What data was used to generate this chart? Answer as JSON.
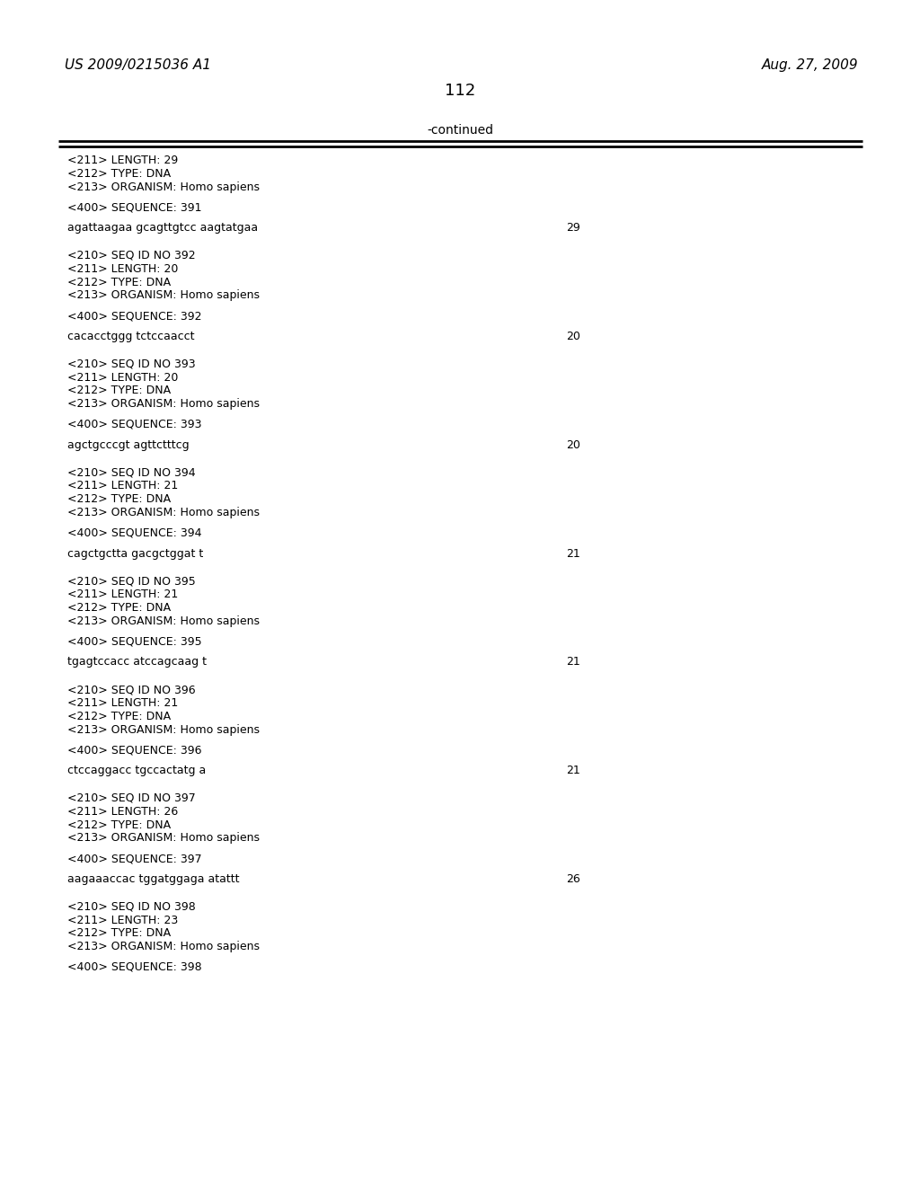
{
  "header_left": "US 2009/0215036 A1",
  "header_right": "Aug. 27, 2009",
  "page_number": "112",
  "continued_label": "-continued",
  "background_color": "#ffffff",
  "text_color": "#000000",
  "content_lines": [
    {
      "text": "<211> LENGTH: 29",
      "type": "meta"
    },
    {
      "text": "<212> TYPE: DNA",
      "type": "meta"
    },
    {
      "text": "<213> ORGANISM: Homo sapiens",
      "type": "meta"
    },
    {
      "text": "",
      "type": "blank"
    },
    {
      "text": "<400> SEQUENCE: 391",
      "type": "meta"
    },
    {
      "text": "",
      "type": "blank"
    },
    {
      "text": "agattaagaa gcagttgtcc aagtatgaa",
      "type": "seq",
      "num": "29"
    },
    {
      "text": "",
      "type": "blank"
    },
    {
      "text": "",
      "type": "blank"
    },
    {
      "text": "<210> SEQ ID NO 392",
      "type": "meta"
    },
    {
      "text": "<211> LENGTH: 20",
      "type": "meta"
    },
    {
      "text": "<212> TYPE: DNA",
      "type": "meta"
    },
    {
      "text": "<213> ORGANISM: Homo sapiens",
      "type": "meta"
    },
    {
      "text": "",
      "type": "blank"
    },
    {
      "text": "<400> SEQUENCE: 392",
      "type": "meta"
    },
    {
      "text": "",
      "type": "blank"
    },
    {
      "text": "cacacctggg tctccaacct",
      "type": "seq",
      "num": "20"
    },
    {
      "text": "",
      "type": "blank"
    },
    {
      "text": "",
      "type": "blank"
    },
    {
      "text": "<210> SEQ ID NO 393",
      "type": "meta"
    },
    {
      "text": "<211> LENGTH: 20",
      "type": "meta"
    },
    {
      "text": "<212> TYPE: DNA",
      "type": "meta"
    },
    {
      "text": "<213> ORGANISM: Homo sapiens",
      "type": "meta"
    },
    {
      "text": "",
      "type": "blank"
    },
    {
      "text": "<400> SEQUENCE: 393",
      "type": "meta"
    },
    {
      "text": "",
      "type": "blank"
    },
    {
      "text": "agctgcccgt agttctttcg",
      "type": "seq",
      "num": "20"
    },
    {
      "text": "",
      "type": "blank"
    },
    {
      "text": "",
      "type": "blank"
    },
    {
      "text": "<210> SEQ ID NO 394",
      "type": "meta"
    },
    {
      "text": "<211> LENGTH: 21",
      "type": "meta"
    },
    {
      "text": "<212> TYPE: DNA",
      "type": "meta"
    },
    {
      "text": "<213> ORGANISM: Homo sapiens",
      "type": "meta"
    },
    {
      "text": "",
      "type": "blank"
    },
    {
      "text": "<400> SEQUENCE: 394",
      "type": "meta"
    },
    {
      "text": "",
      "type": "blank"
    },
    {
      "text": "cagctgctta gacgctggat t",
      "type": "seq",
      "num": "21"
    },
    {
      "text": "",
      "type": "blank"
    },
    {
      "text": "",
      "type": "blank"
    },
    {
      "text": "<210> SEQ ID NO 395",
      "type": "meta"
    },
    {
      "text": "<211> LENGTH: 21",
      "type": "meta"
    },
    {
      "text": "<212> TYPE: DNA",
      "type": "meta"
    },
    {
      "text": "<213> ORGANISM: Homo sapiens",
      "type": "meta"
    },
    {
      "text": "",
      "type": "blank"
    },
    {
      "text": "<400> SEQUENCE: 395",
      "type": "meta"
    },
    {
      "text": "",
      "type": "blank"
    },
    {
      "text": "tgagtccacc atccagcaag t",
      "type": "seq",
      "num": "21"
    },
    {
      "text": "",
      "type": "blank"
    },
    {
      "text": "",
      "type": "blank"
    },
    {
      "text": "<210> SEQ ID NO 396",
      "type": "meta"
    },
    {
      "text": "<211> LENGTH: 21",
      "type": "meta"
    },
    {
      "text": "<212> TYPE: DNA",
      "type": "meta"
    },
    {
      "text": "<213> ORGANISM: Homo sapiens",
      "type": "meta"
    },
    {
      "text": "",
      "type": "blank"
    },
    {
      "text": "<400> SEQUENCE: 396",
      "type": "meta"
    },
    {
      "text": "",
      "type": "blank"
    },
    {
      "text": "ctccaggacc tgccactatg a",
      "type": "seq",
      "num": "21"
    },
    {
      "text": "",
      "type": "blank"
    },
    {
      "text": "",
      "type": "blank"
    },
    {
      "text": "<210> SEQ ID NO 397",
      "type": "meta"
    },
    {
      "text": "<211> LENGTH: 26",
      "type": "meta"
    },
    {
      "text": "<212> TYPE: DNA",
      "type": "meta"
    },
    {
      "text": "<213> ORGANISM: Homo sapiens",
      "type": "meta"
    },
    {
      "text": "",
      "type": "blank"
    },
    {
      "text": "<400> SEQUENCE: 397",
      "type": "meta"
    },
    {
      "text": "",
      "type": "blank"
    },
    {
      "text": "aagaaaccac tggatggaga atattt",
      "type": "seq",
      "num": "26"
    },
    {
      "text": "",
      "type": "blank"
    },
    {
      "text": "",
      "type": "blank"
    },
    {
      "text": "<210> SEQ ID NO 398",
      "type": "meta"
    },
    {
      "text": "<211> LENGTH: 23",
      "type": "meta"
    },
    {
      "text": "<212> TYPE: DNA",
      "type": "meta"
    },
    {
      "text": "<213> ORGANISM: Homo sapiens",
      "type": "meta"
    },
    {
      "text": "",
      "type": "blank"
    },
    {
      "text": "<400> SEQUENCE: 398",
      "type": "meta"
    }
  ]
}
